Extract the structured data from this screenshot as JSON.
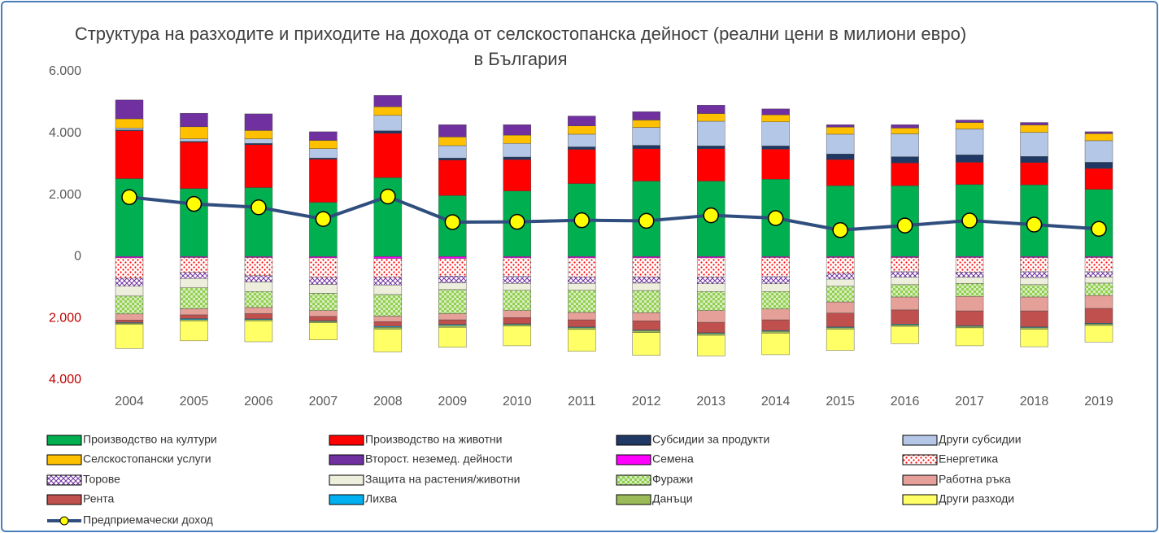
{
  "chart_data": {
    "type": "bar",
    "title": "Структура на разходите и приходите на дохода от селскостопанска дейност (реални цени в милиони евро) в България",
    "categories": [
      "2004",
      "2005",
      "2006",
      "2007",
      "2008",
      "2009",
      "2010",
      "2011",
      "2012",
      "2013",
      "2014",
      "2015",
      "2016",
      "2017",
      "2018",
      "2019"
    ],
    "ylim": [
      -4000,
      6000
    ],
    "yticks": [
      {
        "value": 6000,
        "label": "6.000"
      },
      {
        "value": 4000,
        "label": "4.000"
      },
      {
        "value": 2000,
        "label": "2.000"
      },
      0,
      {
        "value": -2000,
        "label": "2.000"
      },
      {
        "value": -4000,
        "label": "4.000"
      }
    ],
    "grid": false,
    "series": [
      {
        "name": "Производство на култури",
        "color": "#00b050",
        "values": [
          2530,
          2210,
          2240,
          1760,
          2560,
          1980,
          2130,
          2370,
          2450,
          2450,
          2510,
          2300,
          2300,
          2340,
          2330,
          2180
        ]
      },
      {
        "name": "Производство на животни",
        "color": "#ff0000",
        "values": [
          1550,
          1500,
          1390,
          1400,
          1440,
          1150,
          1020,
          1110,
          1050,
          1050,
          980,
          850,
          740,
          720,
          720,
          680
        ]
      },
      {
        "name": "Субсидии за продукти",
        "color": "#1f3864",
        "values": [
          30,
          30,
          40,
          40,
          80,
          70,
          80,
          80,
          110,
          90,
          100,
          180,
          200,
          240,
          200,
          200
        ]
      },
      {
        "name": "Други субсидии",
        "color": "#b4c7e7",
        "values": [
          60,
          80,
          150,
          300,
          500,
          400,
          440,
          410,
          580,
          800,
          780,
          640,
          740,
          840,
          780,
          700
        ]
      },
      {
        "name": "Селскостопански услуги",
        "color": "#ffc000",
        "values": [
          300,
          390,
          270,
          270,
          280,
          280,
          270,
          270,
          240,
          250,
          230,
          230,
          190,
          210,
          240,
          230
        ]
      },
      {
        "name": "Второст. неземед. дейности",
        "color": "#7030a0",
        "values": [
          610,
          440,
          540,
          280,
          370,
          400,
          340,
          320,
          270,
          270,
          190,
          80,
          110,
          80,
          80,
          60
        ]
      },
      {
        "name": "Семена",
        "color": "#ff00ff",
        "values": [
          -40,
          -30,
          -30,
          -40,
          -60,
          -60,
          -40,
          -40,
          -40,
          -40,
          -30,
          -30,
          -30,
          -30,
          -30,
          -30
        ]
      },
      {
        "name": "Енергетика",
        "color": "#ff0000",
        "pattern": "dots",
        "values": [
          -660,
          -480,
          -590,
          -630,
          -610,
          -570,
          -600,
          -620,
          -620,
          -620,
          -620,
          -510,
          -460,
          -470,
          -460,
          -460
        ]
      },
      {
        "name": "Торове",
        "color": "#7030a0",
        "pattern": "cross",
        "values": [
          -260,
          -200,
          -200,
          -230,
          -250,
          -220,
          -230,
          -210,
          -200,
          -220,
          -230,
          -190,
          -180,
          -170,
          -190,
          -170
        ]
      },
      {
        "name": "Защита на растения/животни",
        "color": "#eeeedd",
        "values": [
          -320,
          -300,
          -310,
          -290,
          -310,
          -220,
          -220,
          -220,
          -240,
          -250,
          -250,
          -230,
          -240,
          -200,
          -230,
          -200
        ]
      },
      {
        "name": "Фуражи",
        "color": "#92d050",
        "pattern": "checker",
        "values": [
          -580,
          -680,
          -520,
          -560,
          -700,
          -780,
          -660,
          -720,
          -720,
          -620,
          -570,
          -510,
          -400,
          -420,
          -400,
          -400
        ]
      },
      {
        "name": "Работна ръка",
        "color": "#e6a09a",
        "values": [
          -200,
          -200,
          -200,
          -190,
          -180,
          -200,
          -230,
          -240,
          -260,
          -380,
          -350,
          -360,
          -420,
          -470,
          -450,
          -420
        ]
      },
      {
        "name": "Рента",
        "color": "#c0504d",
        "values": [
          -80,
          -120,
          -170,
          -140,
          -150,
          -150,
          -200,
          -230,
          -300,
          -340,
          -350,
          -450,
          -460,
          -480,
          -520,
          -480
        ]
      },
      {
        "name": "Лихва",
        "color": "#00b0f0",
        "values": [
          -20,
          -30,
          -20,
          -20,
          -30,
          -30,
          -20,
          -20,
          -20,
          -20,
          -20,
          -20,
          -20,
          -20,
          -20,
          -20
        ]
      },
      {
        "name": "Данъци",
        "color": "#9bbb59",
        "values": [
          -30,
          -40,
          -40,
          -40,
          -60,
          -60,
          -50,
          -60,
          -60,
          -60,
          -60,
          -50,
          -50,
          -50,
          -50,
          -50
        ]
      },
      {
        "name": "Други разходи",
        "color": "#ffff66",
        "values": [
          -790,
          -650,
          -680,
          -560,
          -740,
          -650,
          -640,
          -710,
          -740,
          -670,
          -700,
          -690,
          -560,
          -580,
          -570,
          -540
        ]
      },
      {
        "name": "Предприемачески доход",
        "type": "line",
        "color": "#2f4e7e",
        "marker_color": "#ffff00",
        "values": [
          1930,
          1710,
          1600,
          1220,
          1950,
          1120,
          1130,
          1180,
          1160,
          1340,
          1250,
          860,
          1010,
          1170,
          1040,
          900
        ]
      }
    ]
  }
}
